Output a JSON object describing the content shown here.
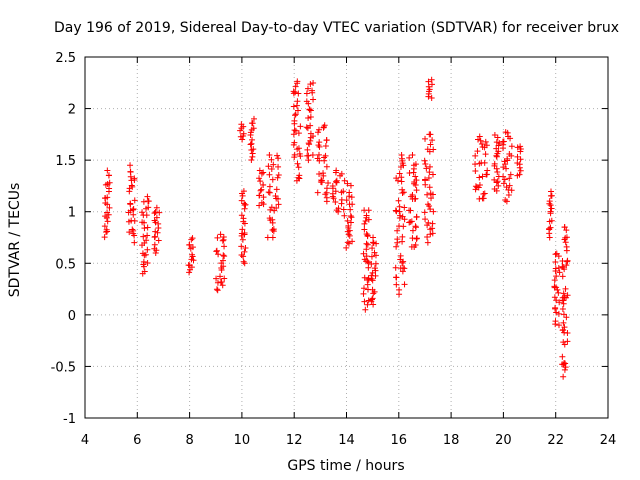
{
  "chart_data": {
    "type": "scatter",
    "title": "Day 196 of 2019, Sidereal Day-to-day VTEC variation (SDTVAR) for receiver brux",
    "xlabel": "GPS time / hours",
    "ylabel": "SDTVAR / TECUs",
    "xlim": [
      4,
      24
    ],
    "ylim": [
      -1,
      2.5
    ],
    "xticks": [
      4,
      6,
      8,
      10,
      12,
      14,
      16,
      18,
      20,
      22,
      24
    ],
    "yticks": [
      -1,
      -0.5,
      0,
      0.5,
      1,
      1.5,
      2,
      2.5
    ],
    "xtick_labels": [
      "4",
      "6",
      "8",
      "10",
      "12",
      "14",
      "16",
      "18",
      "20",
      "22",
      "24"
    ],
    "ytick_labels": [
      "-1",
      "-0.5",
      "0",
      "0.5",
      "1",
      "1.5",
      "2",
      "2.5"
    ],
    "grid": true,
    "marker": "+",
    "color": "#ff0000",
    "series": [
      {
        "name": "SDTVAR",
        "clusters": [
          {
            "x": [
              4.7,
              5.0
            ],
            "y": [
              0.75,
              1.4
            ]
          },
          {
            "x": [
              5.6,
              6.0
            ],
            "y": [
              0.7,
              1.45
            ]
          },
          {
            "x": [
              6.1,
              6.5
            ],
            "y": [
              0.4,
              1.15
            ]
          },
          {
            "x": [
              6.6,
              6.9
            ],
            "y": [
              0.6,
              1.05
            ]
          },
          {
            "x": [
              7.9,
              8.2
            ],
            "y": [
              0.4,
              0.75
            ]
          },
          {
            "x": [
              8.9,
              9.4
            ],
            "y": [
              0.22,
              0.78
            ]
          },
          {
            "x": [
              9.9,
              10.2
            ],
            "y": [
              0.5,
              1.2
            ]
          },
          {
            "x": [
              9.9,
              10.1
            ],
            "y": [
              1.7,
              1.85
            ]
          },
          {
            "x": [
              10.3,
              10.5
            ],
            "y": [
              1.5,
              1.9
            ]
          },
          {
            "x": [
              10.6,
              10.9
            ],
            "y": [
              1.05,
              1.4
            ]
          },
          {
            "x": [
              10.9,
              11.5
            ],
            "y": [
              0.75,
              1.55
            ]
          },
          {
            "x": [
              11.9,
              12.3
            ],
            "y": [
              1.3,
              2.27
            ]
          },
          {
            "x": [
              12.4,
              12.8
            ],
            "y": [
              1.5,
              2.25
            ]
          },
          {
            "x": [
              12.8,
              13.4
            ],
            "y": [
              1.1,
              1.85
            ]
          },
          {
            "x": [
              13.4,
              13.9
            ],
            "y": [
              1.0,
              1.4
            ]
          },
          {
            "x": [
              13.8,
              14.3
            ],
            "y": [
              0.65,
              1.3
            ]
          },
          {
            "x": [
              14.6,
              14.9
            ],
            "y": [
              0.05,
              1.05
            ]
          },
          {
            "x": [
              14.9,
              15.2
            ],
            "y": [
              0.1,
              0.75
            ]
          },
          {
            "x": [
              15.8,
              16.3
            ],
            "y": [
              0.2,
              1.55
            ]
          },
          {
            "x": [
              16.3,
              16.8
            ],
            "y": [
              0.65,
              1.55
            ]
          },
          {
            "x": [
              16.9,
              17.4
            ],
            "y": [
              0.7,
              1.75
            ]
          },
          {
            "x": [
              17.1,
              17.3
            ],
            "y": [
              2.1,
              2.28
            ]
          },
          {
            "x": [
              18.8,
              19.5
            ],
            "y": [
              1.1,
              1.75
            ]
          },
          {
            "x": [
              19.6,
              19.9
            ],
            "y": [
              1.2,
              1.75
            ]
          },
          {
            "x": [
              19.9,
              20.4
            ],
            "y": [
              1.1,
              1.8
            ]
          },
          {
            "x": [
              20.5,
              20.7
            ],
            "y": [
              1.35,
              1.65
            ]
          },
          {
            "x": [
              21.7,
              21.9
            ],
            "y": [
              0.75,
              1.2
            ]
          },
          {
            "x": [
              21.9,
              22.2
            ],
            "y": [
              -0.1,
              0.6
            ]
          },
          {
            "x": [
              22.2,
              22.5
            ],
            "y": [
              -0.6,
              0.85
            ]
          }
        ]
      }
    ]
  }
}
